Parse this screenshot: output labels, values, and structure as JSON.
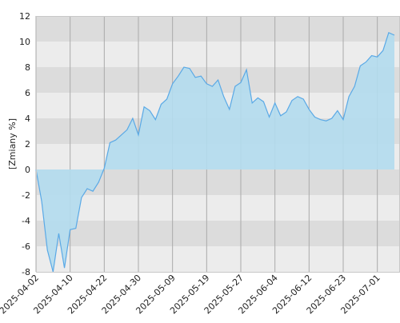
{
  "chart_data": {
    "type": "area",
    "ylabel": "[Zmiany %]",
    "categories": [
      "2025-04-02",
      null,
      null,
      null,
      null,
      null,
      "2025-04-10",
      null,
      null,
      null,
      null,
      null,
      "2025-04-22",
      null,
      null,
      null,
      null,
      null,
      "2025-04-30",
      null,
      null,
      null,
      null,
      null,
      "2025-05-09",
      null,
      null,
      null,
      null,
      null,
      "2025-05-19",
      null,
      null,
      null,
      null,
      null,
      "2025-05-27",
      null,
      null,
      null,
      null,
      null,
      "2025-06-04",
      null,
      null,
      null,
      null,
      null,
      "2025-06-12",
      null,
      null,
      null,
      null,
      null,
      "2025-06-23",
      null,
      null,
      null,
      null,
      null,
      "2025-07-01",
      null,
      null,
      null
    ],
    "values": [
      0,
      -2.5,
      -6.3,
      -8.0,
      -5.0,
      -7.7,
      -4.7,
      -4.6,
      -2.2,
      -1.5,
      -1.7,
      -1.0,
      0.1,
      2.1,
      2.3,
      2.7,
      3.1,
      4.0,
      2.7,
      4.9,
      4.6,
      3.9,
      5.1,
      5.5,
      6.7,
      7.3,
      8.0,
      7.9,
      7.2,
      7.3,
      6.7,
      6.5,
      7.0,
      5.7,
      4.7,
      6.5,
      6.8,
      7.8,
      5.2,
      5.6,
      5.3,
      4.1,
      5.2,
      4.2,
      4.5,
      5.4,
      5.7,
      5.5,
      4.7,
      4.1,
      3.9,
      3.8,
      4.0,
      4.6,
      3.9,
      5.7,
      6.5,
      8.1,
      8.4,
      8.9,
      8.8,
      9.3,
      10.7,
      10.5
    ],
    "color": "#5aa9e6",
    "fill": "#b3dcee",
    "ylim": [
      -8,
      12
    ],
    "yticks": [
      -8,
      -6,
      -4,
      -2,
      0,
      2,
      4,
      6,
      8,
      10,
      12
    ],
    "grid": true
  }
}
